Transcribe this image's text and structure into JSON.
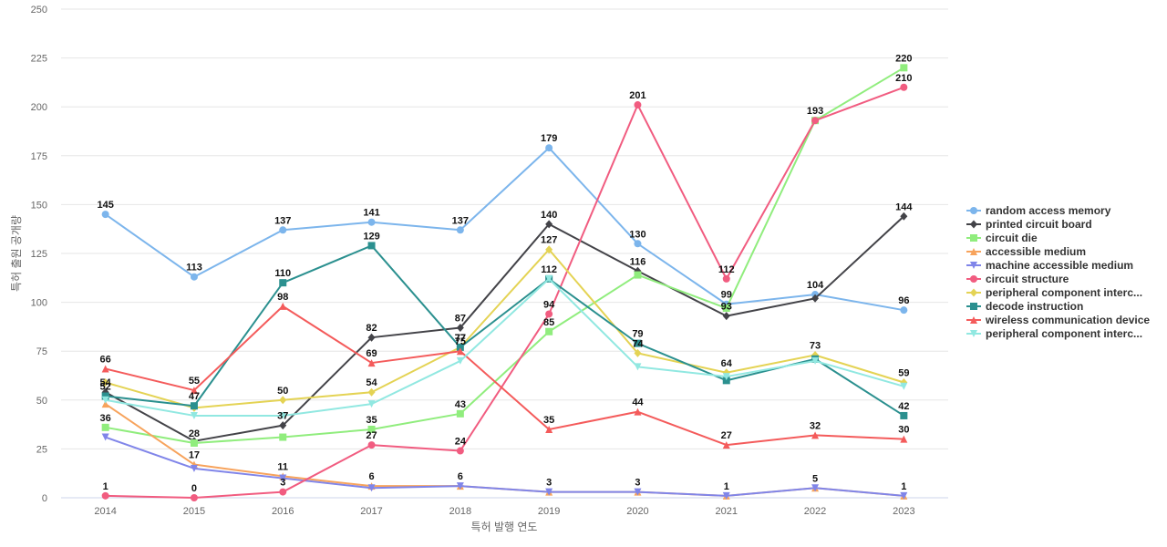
{
  "chart_data": {
    "type": "line",
    "title": "",
    "xlabel": "특허 발행 연도",
    "ylabel": "특허 출원 공개량",
    "ylim": [
      0,
      250
    ],
    "yticks": [
      0,
      25,
      50,
      75,
      100,
      125,
      150,
      175,
      200,
      225,
      250
    ],
    "grid": true,
    "legend_position": "right",
    "categories": [
      "2014",
      "2015",
      "2016",
      "2017",
      "2018",
      "2019",
      "2020",
      "2021",
      "2022",
      "2023"
    ],
    "series": [
      {
        "name": "random access memory",
        "color": "#7cb5ec",
        "marker": "circle",
        "values": [
          145,
          113,
          137,
          141,
          137,
          179,
          130,
          99,
          104,
          96
        ]
      },
      {
        "name": "printed circuit board",
        "color": "#434348",
        "marker": "diamond",
        "values": [
          54,
          29,
          37,
          82,
          87,
          140,
          116,
          93,
          102,
          144
        ]
      },
      {
        "name": "circuit die",
        "color": "#90ed7d",
        "marker": "square",
        "values": [
          36,
          28,
          31,
          35,
          43,
          85,
          114,
          97,
          193,
          220
        ]
      },
      {
        "name": "accessible medium",
        "color": "#f7a35c",
        "marker": "triangle",
        "values": [
          48,
          17,
          11,
          6,
          6,
          3,
          3,
          1,
          5,
          1
        ]
      },
      {
        "name": "machine accessible medium",
        "color": "#8085e9",
        "marker": "triangle-down",
        "values": [
          31,
          15,
          10,
          5,
          6,
          3,
          3,
          1,
          5,
          1
        ]
      },
      {
        "name": "circuit structure",
        "color": "#f15c80",
        "marker": "circle",
        "values": [
          1,
          0,
          3,
          27,
          24,
          94,
          201,
          112,
          193,
          210
        ]
      },
      {
        "name": "peripheral component interc...",
        "color": "#e4d354",
        "marker": "diamond",
        "values": [
          59,
          46,
          50,
          54,
          77,
          127,
          74,
          64,
          73,
          59
        ]
      },
      {
        "name": "decode instruction",
        "color": "#2b908f",
        "marker": "square",
        "values": [
          52,
          47,
          110,
          129,
          77,
          112,
          79,
          60,
          71,
          42
        ]
      },
      {
        "name": "wireless communication device",
        "color": "#f45b5b",
        "marker": "triangle",
        "values": [
          66,
          55,
          98,
          69,
          75,
          35,
          44,
          27,
          32,
          30
        ]
      },
      {
        "name": "peripheral component interc...",
        "color": "#91e8e1",
        "marker": "triangle-down",
        "values": [
          50,
          42,
          42,
          48,
          70,
          112,
          67,
          62,
          70,
          57
        ]
      }
    ],
    "data_labels": [
      {
        "series": 0,
        "points": [
          0,
          1,
          2,
          3,
          4,
          5,
          6,
          7,
          8,
          9
        ]
      },
      {
        "series": 1,
        "points": [
          0,
          2,
          3,
          4,
          5,
          6,
          7,
          9
        ]
      },
      {
        "series": 2,
        "points": [
          0,
          1,
          3,
          4,
          5,
          8,
          9
        ]
      },
      {
        "series": 3,
        "points": [
          1,
          2,
          3,
          4,
          5,
          6,
          7,
          8,
          9
        ]
      },
      {
        "series": 5,
        "points": [
          0,
          1,
          2,
          3,
          4,
          5,
          6,
          7,
          9
        ]
      },
      {
        "series": 6,
        "points": [
          2,
          3,
          4,
          5,
          6,
          7,
          8,
          9
        ]
      },
      {
        "series": 7,
        "points": [
          0,
          1,
          2,
          3,
          4,
          5,
          6,
          9
        ]
      },
      {
        "series": 8,
        "points": [
          0,
          1,
          2,
          3,
          4,
          5,
          6,
          7,
          8,
          9
        ]
      }
    ]
  }
}
